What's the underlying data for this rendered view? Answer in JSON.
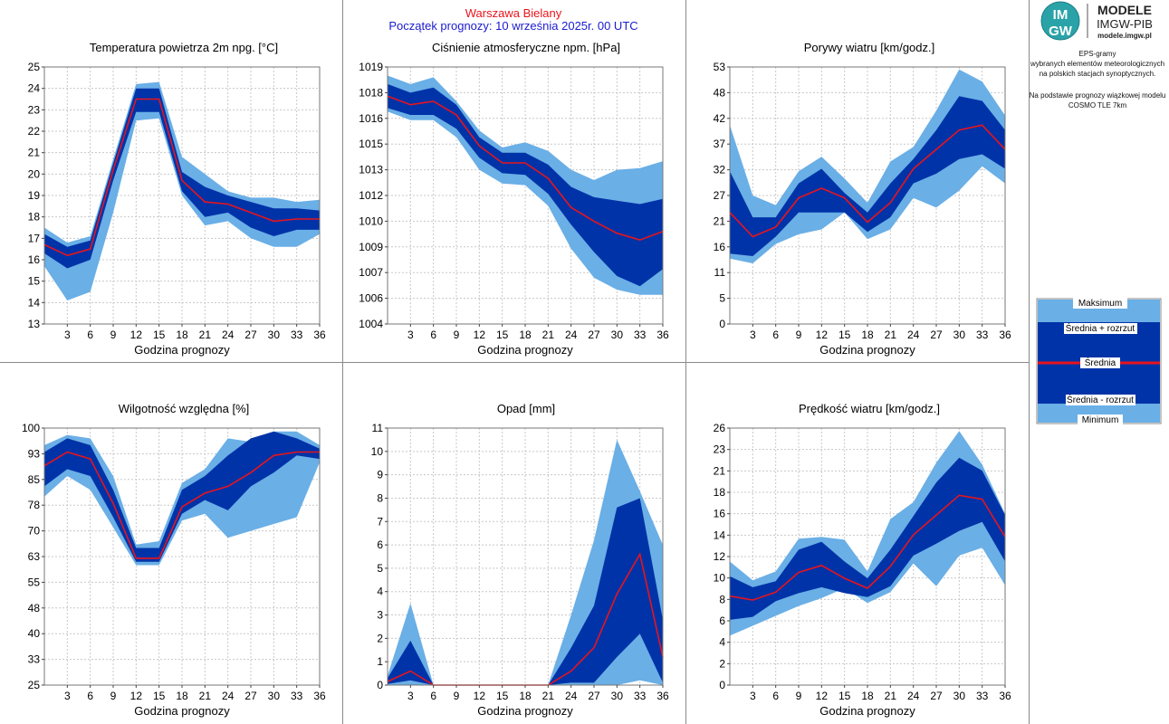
{
  "header": {
    "station": "Warszawa Bielany",
    "forecast_start": "Początek prognozy: 10 września 2025r. 00 UTC",
    "station_color": "#e8141c",
    "start_color": "#1b1bd0"
  },
  "logo": {
    "mark_top": "IM",
    "mark_bottom": "GW",
    "line1": "MODELE",
    "line2": "IMGW-PIB",
    "line3": "modele.imgw.pl"
  },
  "info": {
    "lines": [
      "EPS-gramy",
      "wybranych elementów meteorologicznych",
      "na polskich stacjach  synoptycznych.",
      "",
      "Na podstawie prognozy wiązkowej modelu",
      "COSMO TLE 7km"
    ]
  },
  "legend": {
    "items": [
      "Maksimum",
      "Średnia + rozrzut",
      "Średnia",
      "Średnia - rozrzut",
      "Minimum"
    ]
  },
  "colors": {
    "outer_band": "#6aafe6",
    "inner_band": "#0033a8",
    "mean_line": "#e8141c",
    "grid": "#c8c8c8"
  },
  "chart_data": [
    {
      "type": "area",
      "title": "Temperatura powietrza 2m npg. [°C]",
      "xlabel": "Godzina prognozy",
      "x": [
        0,
        3,
        6,
        9,
        12,
        15,
        18,
        21,
        24,
        27,
        30,
        33,
        36
      ],
      "xticks": [
        "3",
        "6",
        "9",
        "12",
        "15",
        "18",
        "21",
        "24",
        "27",
        "30",
        "33",
        "36"
      ],
      "ylim": [
        13,
        25
      ],
      "yticks": [
        "13",
        "14",
        "15",
        "16",
        "17",
        "18",
        "19",
        "20",
        "21",
        "22",
        "23",
        "24",
        "25"
      ],
      "max": [
        17.5,
        16.8,
        17.1,
        20.7,
        24.2,
        24.3,
        20.8,
        20.0,
        19.2,
        18.9,
        18.9,
        18.7,
        18.8
      ],
      "mean_plus": [
        17.2,
        16.6,
        16.9,
        20.5,
        24.0,
        24.0,
        20.1,
        19.4,
        19.0,
        18.7,
        18.4,
        18.4,
        18.3
      ],
      "mean": [
        16.7,
        16.2,
        16.5,
        20.2,
        23.5,
        23.5,
        19.7,
        18.7,
        18.6,
        18.2,
        17.8,
        17.9,
        17.9
      ],
      "mean_minus": [
        16.3,
        15.6,
        16.0,
        19.7,
        22.9,
        22.9,
        19.2,
        18.0,
        18.2,
        17.5,
        17.1,
        17.4,
        17.4
      ],
      "min": [
        15.7,
        14.1,
        14.5,
        18.2,
        22.5,
        22.6,
        19.0,
        17.6,
        17.8,
        17.0,
        16.6,
        16.6,
        17.2
      ]
    },
    {
      "type": "area",
      "title": "Ciśnienie atmosferyczne npm. [hPa]",
      "xlabel": "Godzina prognozy",
      "x": [
        0,
        3,
        6,
        9,
        12,
        15,
        18,
        21,
        24,
        27,
        30,
        33,
        36
      ],
      "xticks": [
        "3",
        "6",
        "9",
        "12",
        "15",
        "18",
        "21",
        "24",
        "27",
        "30",
        "33",
        "36"
      ],
      "ylim": [
        1004,
        1019
      ],
      "yticks": [
        "1004",
        "1006",
        "1007",
        "1009",
        "1010",
        "1012",
        "1013",
        "1015",
        "1016",
        "1018",
        "1019"
      ],
      "max": [
        1018.5,
        1018.0,
        1018.4,
        1017.0,
        1015.3,
        1014.3,
        1014.6,
        1014.1,
        1013.0,
        1012.4,
        1013.0,
        1013.1,
        1013.5
      ],
      "mean_plus": [
        1018.0,
        1017.5,
        1017.8,
        1016.8,
        1014.9,
        1014.0,
        1014.0,
        1013.3,
        1012.0,
        1011.4,
        1011.2,
        1011.0,
        1011.3
      ],
      "mean": [
        1017.3,
        1016.8,
        1017.0,
        1016.2,
        1014.4,
        1013.4,
        1013.4,
        1012.5,
        1010.8,
        1010.0,
        1009.3,
        1008.9,
        1009.4
      ],
      "mean_minus": [
        1016.6,
        1016.2,
        1016.2,
        1015.4,
        1013.7,
        1012.8,
        1012.7,
        1011.6,
        1009.8,
        1008.2,
        1006.8,
        1006.2,
        1007.2
      ],
      "min": [
        1016.4,
        1015.9,
        1015.9,
        1014.9,
        1013.0,
        1012.2,
        1012.1,
        1010.9,
        1008.4,
        1006.7,
        1006.0,
        1005.7,
        1005.7
      ]
    },
    {
      "type": "area",
      "title": "Porywy wiatru [km/godz.]",
      "xlabel": "Godzina prognozy",
      "x": [
        0,
        3,
        6,
        9,
        12,
        15,
        18,
        21,
        24,
        27,
        30,
        33,
        36
      ],
      "xticks": [
        "3",
        "6",
        "9",
        "12",
        "15",
        "18",
        "21",
        "24",
        "27",
        "30",
        "33",
        "36"
      ],
      "ylim": [
        0,
        53
      ],
      "yticks": [
        "0",
        "5",
        "11",
        "16",
        "21",
        "27",
        "32",
        "37",
        "42",
        "48",
        "53"
      ],
      "max": [
        41,
        26.5,
        24.5,
        31.5,
        34.5,
        30,
        25,
        33.5,
        36.5,
        44,
        52.5,
        50,
        43
      ],
      "mean_plus": [
        31.5,
        22,
        22,
        29,
        32,
        27,
        23,
        29,
        34,
        40,
        47,
        46,
        40
      ],
      "mean": [
        23,
        18,
        20,
        26,
        28,
        26,
        21,
        25,
        32,
        36,
        40,
        41,
        36
      ],
      "mean_minus": [
        14.5,
        14,
        18,
        23,
        23,
        23,
        19,
        22,
        29,
        31,
        34,
        35,
        32
      ],
      "min": [
        13.5,
        12.5,
        16.5,
        18.5,
        19.5,
        23,
        17.5,
        19.5,
        26,
        24,
        27.5,
        32.5,
        29
      ]
    },
    {
      "type": "area",
      "title": "Wilgotność względna [%]",
      "xlabel": "Godzina prognozy",
      "x": [
        0,
        3,
        6,
        9,
        12,
        15,
        18,
        21,
        24,
        27,
        30,
        33,
        36
      ],
      "xticks": [
        "3",
        "6",
        "9",
        "12",
        "15",
        "18",
        "21",
        "24",
        "27",
        "30",
        "33",
        "36"
      ],
      "ylim": [
        25,
        100
      ],
      "yticks": [
        "25",
        "33",
        "40",
        "48",
        "55",
        "63",
        "70",
        "78",
        "85",
        "93",
        "100"
      ],
      "max": [
        95,
        98,
        97,
        86,
        66,
        67,
        84,
        88,
        97,
        96,
        99,
        99,
        95
      ],
      "mean_plus": [
        93,
        97,
        95,
        82,
        65,
        65,
        82,
        86,
        92,
        97,
        99,
        97,
        94
      ],
      "mean": [
        89,
        93,
        91,
        78,
        62,
        62,
        77,
        81,
        83,
        87,
        92,
        93,
        93
      ],
      "mean_minus": [
        83,
        88,
        86,
        74,
        61,
        61,
        75,
        79,
        76,
        83,
        87,
        92,
        91
      ],
      "min": [
        80,
        86,
        82,
        71,
        60,
        60,
        73,
        75,
        68,
        70,
        72,
        74,
        90
      ]
    },
    {
      "type": "area",
      "title": "Opad [mm]",
      "xlabel": "Godzina prognozy",
      "x": [
        0,
        3,
        6,
        9,
        12,
        15,
        18,
        21,
        24,
        27,
        30,
        33,
        36
      ],
      "xticks": [
        "3",
        "6",
        "9",
        "12",
        "15",
        "18",
        "21",
        "24",
        "27",
        "30",
        "33",
        "36"
      ],
      "ylim": [
        0,
        11
      ],
      "yticks": [
        "0",
        "1",
        "2",
        "3",
        "4",
        "5",
        "6",
        "7",
        "8",
        "9",
        "10",
        "11"
      ],
      "max": [
        0.4,
        3.5,
        0,
        0,
        0,
        0,
        0,
        0,
        3.0,
        6.2,
        10.5,
        8.3,
        6.0
      ],
      "mean_plus": [
        0.3,
        1.9,
        0,
        0,
        0,
        0,
        0,
        0,
        1.6,
        3.4,
        7.6,
        8.0,
        2.8
      ],
      "mean": [
        0.15,
        0.6,
        0,
        0,
        0,
        0,
        0,
        0,
        0.6,
        1.6,
        3.9,
        5.6,
        1.2
      ],
      "mean_minus": [
        0.05,
        0.2,
        0,
        0,
        0,
        0,
        0,
        0,
        0.1,
        0.1,
        1.2,
        2.2,
        0.1
      ],
      "min": [
        0,
        0,
        0,
        0,
        0,
        0,
        0,
        0,
        0,
        0,
        0,
        0.2,
        0
      ]
    },
    {
      "type": "area",
      "title": "Prędkość wiatru [km/godz.]",
      "xlabel": "Godzina prognozy",
      "x": [
        0,
        3,
        6,
        9,
        12,
        15,
        18,
        21,
        24,
        27,
        30,
        33,
        36
      ],
      "xticks": [
        "3",
        "6",
        "9",
        "12",
        "15",
        "18",
        "21",
        "24",
        "27",
        "30",
        "33",
        "36"
      ],
      "ylim": [
        0,
        26
      ],
      "yticks": [
        "0",
        "2",
        "4",
        "6",
        "8",
        "10",
        "12",
        "14",
        "16",
        "18",
        "21",
        "23",
        "26"
      ],
      "max": [
        12.5,
        10.6,
        11.5,
        14.8,
        15.0,
        14.7,
        11.5,
        16.8,
        18.5,
        22.5,
        25.7,
        22.3,
        17.3
      ],
      "mean_plus": [
        11.0,
        9.9,
        10.5,
        13.7,
        14.5,
        12.5,
        10.8,
        13.7,
        17.1,
        20.5,
        23.0,
        21.7,
        17.2
      ],
      "mean": [
        9.0,
        8.6,
        9.4,
        11.4,
        12.1,
        10.8,
        9.8,
        12.0,
        15.2,
        17.2,
        19.2,
        18.8,
        15.0
      ],
      "mean_minus": [
        6.6,
        6.9,
        8.5,
        9.3,
        9.9,
        9.3,
        8.9,
        10.0,
        13.1,
        14.3,
        15.6,
        16.5,
        12.5
      ],
      "min": [
        5.0,
        6.0,
        7.0,
        8.0,
        8.8,
        9.8,
        8.3,
        9.4,
        12.3,
        10.0,
        13.1,
        13.9,
        10.1
      ]
    }
  ]
}
